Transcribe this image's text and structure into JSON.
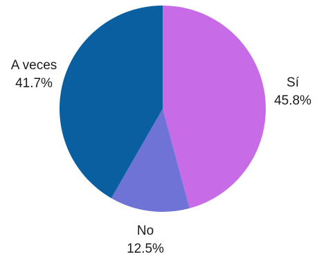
{
  "chart_data": {
    "type": "pie",
    "title": "",
    "start_angle_deg": 0,
    "direction": "clockwise",
    "slices": [
      {
        "label": "Sí",
        "value": 45.8,
        "value_label": "45.8%",
        "color": "#c86be6"
      },
      {
        "label": "No",
        "value": 12.5,
        "value_label": "12.5%",
        "color": "#6f73d6"
      },
      {
        "label": "A veces",
        "value": 41.7,
        "value_label": "41.7%",
        "color": "#0a5fa0"
      }
    ],
    "legend": "none"
  }
}
